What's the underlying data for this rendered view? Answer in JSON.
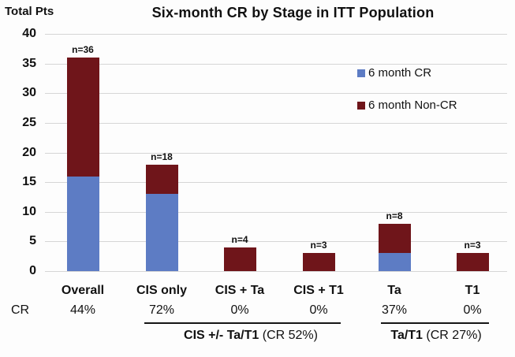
{
  "title": "Six-month CR by Stage in ITT Population",
  "y_axis_title": "Total Pts",
  "cr_row_label": "CR",
  "colors": {
    "cr_blue": "#5d7cc4",
    "non_cr_red": "#6f151a",
    "gridline": "#d6d6d6",
    "text": "#111111"
  },
  "legend": [
    {
      "label": "6 month CR",
      "color": "#5d7cc4"
    },
    {
      "label": "6 month Non-CR",
      "color": "#6f151a"
    }
  ],
  "chart_data": {
    "type": "bar",
    "stacked": true,
    "title": "Six-month CR by Stage in ITT Population",
    "ylabel": "Total Pts",
    "ylim": [
      0,
      40
    ],
    "yticks": [
      40,
      35,
      30,
      25,
      20,
      15,
      10,
      5,
      0
    ],
    "grid": true,
    "legend_position": "upper-right",
    "categories": [
      "Overall",
      "CIS only",
      "CIS + Ta",
      "CIS + T1",
      "Ta",
      "T1"
    ],
    "series": [
      {
        "name": "6 month CR",
        "color": "#5d7cc4",
        "values": [
          16,
          13,
          0,
          0,
          3,
          0
        ]
      },
      {
        "name": "6 month Non-CR",
        "color": "#6f151a",
        "values": [
          20,
          5,
          4,
          3,
          5,
          3
        ]
      }
    ],
    "totals": [
      36,
      18,
      4,
      3,
      8,
      3
    ],
    "n_labels": [
      "n=36",
      "n=18",
      "n=4",
      "n=3",
      "n=8",
      "n=3"
    ],
    "cr_percent": [
      "44%",
      "72%",
      "0%",
      "0%",
      "37%",
      "0%"
    ]
  },
  "group_annotations": [
    {
      "bold": "CIS +/- Ta/T1",
      "rest": " (CR 52%)"
    },
    {
      "bold": "Ta/T1",
      "rest": " (CR 27%)"
    }
  ]
}
